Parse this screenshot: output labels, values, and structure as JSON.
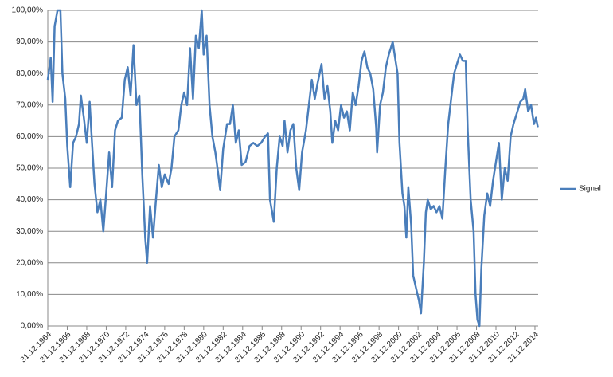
{
  "chart_data": {
    "type": "line",
    "series": [
      {
        "name": "Signal",
        "color": "#4a7ebb",
        "x": [
          1965.0,
          1965.3,
          1965.5,
          1965.7,
          1966.0,
          1966.3,
          1966.5,
          1966.8,
          1967.0,
          1967.3,
          1967.6,
          1967.9,
          1968.2,
          1968.4,
          1968.7,
          1969.0,
          1969.3,
          1969.5,
          1969.8,
          1970.1,
          1970.4,
          1970.7,
          1971.0,
          1971.3,
          1971.6,
          1971.9,
          1972.2,
          1972.6,
          1972.9,
          1973.2,
          1973.5,
          1973.8,
          1974.1,
          1974.4,
          1974.7,
          1975.0,
          1975.2,
          1975.5,
          1975.8,
          1976.1,
          1976.4,
          1976.7,
          1977.0,
          1977.4,
          1977.7,
          1978.0,
          1978.4,
          1978.7,
          1979.0,
          1979.3,
          1979.6,
          1979.9,
          1980.2,
          1980.5,
          1980.8,
          1981.0,
          1981.3,
          1981.6,
          1981.9,
          1982.2,
          1982.5,
          1982.7,
          1983.0,
          1983.4,
          1983.7,
          1984.0,
          1984.3,
          1984.6,
          1984.9,
          1985.3,
          1985.7,
          1986.1,
          1986.5,
          1986.9,
          1987.3,
          1987.6,
          1987.8,
          1988.2,
          1988.5,
          1988.8,
          1989.1,
          1989.3,
          1989.6,
          1989.9,
          1990.2,
          1990.5,
          1990.8,
          1991.1,
          1991.5,
          1991.8,
          1992.1,
          1992.4,
          1992.7,
          1993.1,
          1993.4,
          1993.7,
          1994.0,
          1994.2,
          1994.5,
          1994.8,
          1995.1,
          1995.4,
          1995.7,
          1996.0,
          1996.3,
          1996.6,
          1996.9,
          1997.2,
          1997.5,
          1997.8,
          1998.1,
          1998.4,
          1998.7,
          1998.8,
          1999.1,
          1999.4,
          1999.7,
          2000.0,
          2000.4,
          2000.7,
          2000.9,
          2001.1,
          2001.4,
          2001.6,
          2001.8,
          2002.0,
          2002.3,
          2002.5,
          2002.8,
          2003.1,
          2003.3,
          2003.6,
          2003.8,
          2004.0,
          2004.3,
          2004.6,
          2004.9,
          2005.2,
          2005.5,
          2005.8,
          2006.1,
          2006.4,
          2006.7,
          2007.0,
          2007.3,
          2007.6,
          2007.9,
          2008.1,
          2008.4,
          2008.7,
          2008.9,
          2009.1,
          2009.3,
          2009.5,
          2009.8,
          2010.1,
          2010.4,
          2010.7,
          2011.0,
          2011.3,
          2011.6,
          2011.9,
          2012.2,
          2012.5,
          2012.8,
          2013.1,
          2013.5,
          2013.8,
          2014.0,
          2014.3,
          2014.6,
          2014.9,
          2015.1,
          2015.3
        ],
        "values": [
          78,
          85,
          71,
          95,
          100,
          100,
          80,
          72,
          57,
          44,
          58,
          60,
          64,
          73,
          66,
          58,
          71,
          60,
          45,
          36,
          40,
          30,
          42,
          55,
          44,
          62,
          65,
          66,
          78,
          82,
          73,
          89,
          70,
          73,
          48,
          28,
          20,
          38,
          28,
          40,
          51,
          44,
          48,
          45,
          50,
          60,
          62,
          70,
          74,
          70,
          88,
          72,
          92,
          88,
          100,
          86,
          92,
          70,
          60,
          55,
          48,
          43,
          56,
          64,
          64,
          70,
          58,
          62,
          51,
          52,
          57,
          58,
          57,
          58,
          60,
          61,
          40,
          33,
          50,
          60,
          57,
          65,
          55,
          62,
          64,
          50,
          43,
          55,
          62,
          70,
          78,
          72,
          77,
          83,
          72,
          76,
          68,
          58,
          65,
          62,
          70,
          66,
          68,
          62,
          74,
          70,
          76,
          84,
          87,
          82,
          80,
          75,
          63,
          55,
          70,
          74,
          82,
          86,
          90,
          84,
          80,
          58,
          42,
          38,
          28,
          44,
          32,
          16,
          12,
          8,
          4,
          20,
          36,
          40,
          37,
          38,
          36,
          38,
          34,
          50,
          64,
          72,
          80,
          83,
          86,
          84,
          84,
          62,
          40,
          30,
          10,
          2,
          0,
          18,
          35,
          42,
          38,
          46,
          52,
          58,
          40,
          50,
          46,
          60,
          64,
          67,
          71,
          72,
          75,
          68,
          70,
          64,
          66,
          63
        ]
      }
    ],
    "xlim": [
      1965,
      2015.33
    ],
    "xticks": [
      {
        "value": 1965,
        "label": "31.12.1964"
      },
      {
        "value": 1967,
        "label": "31.12.1966"
      },
      {
        "value": 1969,
        "label": "31.12.1968"
      },
      {
        "value": 1971,
        "label": "31.12.1970"
      },
      {
        "value": 1973,
        "label": "31.12.1972"
      },
      {
        "value": 1975,
        "label": "31.12.1974"
      },
      {
        "value": 1977,
        "label": "31.12.1976"
      },
      {
        "value": 1979,
        "label": "31.12.1978"
      },
      {
        "value": 1981,
        "label": "31.12.1980"
      },
      {
        "value": 1983,
        "label": "31.12.1982"
      },
      {
        "value": 1985,
        "label": "31.12.1984"
      },
      {
        "value": 1987,
        "label": "31.12.1986"
      },
      {
        "value": 1989,
        "label": "31.12.1988"
      },
      {
        "value": 1991,
        "label": "31.12.1990"
      },
      {
        "value": 1993,
        "label": "31.12.1992"
      },
      {
        "value": 1995,
        "label": "31.12.1994"
      },
      {
        "value": 1997,
        "label": "31.12.1996"
      },
      {
        "value": 1999,
        "label": "31.12.1998"
      },
      {
        "value": 2001,
        "label": "31.12.2000"
      },
      {
        "value": 2003,
        "label": "31.12.2002"
      },
      {
        "value": 2005,
        "label": "31.12.2004"
      },
      {
        "value": 2007,
        "label": "31.12.2006"
      },
      {
        "value": 2009,
        "label": "31.12.2008"
      },
      {
        "value": 2011,
        "label": "31.12.2010"
      },
      {
        "value": 2013,
        "label": "31.12.2012"
      },
      {
        "value": 2015,
        "label": "31.12.2014"
      }
    ],
    "ylim": [
      0,
      100
    ],
    "yticks": [
      {
        "value": 0,
        "label": "0,00%"
      },
      {
        "value": 10,
        "label": "10,00%"
      },
      {
        "value": 20,
        "label": "20,00%"
      },
      {
        "value": 30,
        "label": "30,00%"
      },
      {
        "value": 40,
        "label": "40,00%"
      },
      {
        "value": 50,
        "label": "50,00%"
      },
      {
        "value": 60,
        "label": "60,00%"
      },
      {
        "value": 70,
        "label": "70,00%"
      },
      {
        "value": 80,
        "label": "80,00%"
      },
      {
        "value": 90,
        "label": "90,00%"
      },
      {
        "value": 100,
        "label": "100,00%"
      }
    ],
    "grid": true,
    "legend": "right"
  }
}
